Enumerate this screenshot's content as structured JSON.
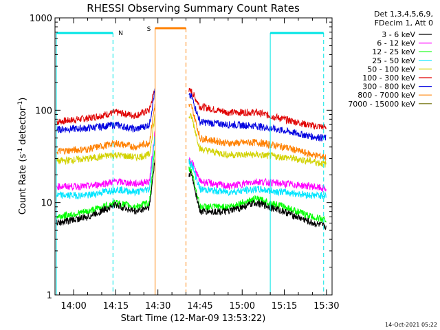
{
  "chart_data": {
    "type": "line",
    "title": "RHESSI Observing Summary Count Rates",
    "xlabel": "Start Time (12-Mar-09 13:53:22)",
    "ylabel_main": "Count Rate (s",
    "ylabel_sup1": "-1",
    "ylabel_mid": " detector",
    "ylabel_sup2": "-1",
    "ylabel_end": ")",
    "yscale": "log",
    "ylim": [
      1,
      1000
    ],
    "xlim": [
      "13:53:22",
      "15:32:00"
    ],
    "x_ticks": [
      "14:00",
      "14:15",
      "14:30",
      "14:45",
      "15:00",
      "15:15",
      "15:30"
    ],
    "y_ticks": [
      "1",
      "10",
      "100",
      "1000"
    ],
    "header": {
      "line1": "Det 1,3,4,5,6,9,",
      "line2": "FDecim 1, Att 0"
    },
    "footer_date": "14-Oct-2021 05:22",
    "annotations": {
      "night_label": "N",
      "saa_label": "S",
      "night_color": "#00e5e5",
      "saa_color": "#ff8000"
    },
    "bands": [
      {
        "label": "3 - 6 keV",
        "color": "#000000"
      },
      {
        "label": "6 - 12 keV",
        "color": "#ff00ff"
      },
      {
        "label": "12 - 25 keV",
        "color": "#00ff00"
      },
      {
        "label": "25 - 50 keV",
        "color": "#00e5ff"
      },
      {
        "label": "50 - 100 keV",
        "color": "#d2d200"
      },
      {
        "label": "100 - 300 keV",
        "color": "#e00000"
      },
      {
        "label": "300 - 800 keV",
        "color": "#0000e0"
      },
      {
        "label": "800 - 7000 keV",
        "color": "#ff8000"
      },
      {
        "label": "7000 - 15000 keV",
        "color": "#6b6b00"
      }
    ],
    "series": [
      {
        "band": "100 - 300 keV",
        "color": "#e00000",
        "times": [
          "13:54",
          "14:05",
          "14:15",
          "14:22",
          "14:27",
          "14:29",
          "14:42",
          "14:45",
          "14:55",
          "15:05",
          "15:15",
          "15:25",
          "15:30"
        ],
        "values": [
          75,
          82,
          95,
          88,
          100,
          180,
          160,
          110,
          95,
          95,
          80,
          68,
          66
        ]
      },
      {
        "band": "300 - 800 keV",
        "color": "#0000e0",
        "times": [
          "13:54",
          "14:05",
          "14:15",
          "14:22",
          "14:27",
          "14:29",
          "14:42",
          "14:45",
          "14:55",
          "15:05",
          "15:15",
          "15:25",
          "15:30"
        ],
        "values": [
          62,
          64,
          70,
          62,
          70,
          170,
          140,
          75,
          70,
          68,
          60,
          52,
          50
        ]
      },
      {
        "band": "800 - 7000 keV",
        "color": "#ff8000",
        "times": [
          "13:54",
          "14:05",
          "14:15",
          "14:22",
          "14:27",
          "14:29",
          "14:42",
          "14:45",
          "14:55",
          "15:05",
          "15:15",
          "15:25",
          "15:30"
        ],
        "values": [
          36,
          38,
          44,
          40,
          45,
          120,
          110,
          50,
          44,
          45,
          40,
          33,
          31
        ]
      },
      {
        "band": "50 - 100 keV",
        "color": "#d2d200",
        "times": [
          "13:54",
          "14:05",
          "14:15",
          "14:22",
          "14:27",
          "14:29",
          "14:42",
          "14:45",
          "14:55",
          "15:05",
          "15:15",
          "15:25",
          "15:30"
        ],
        "values": [
          28,
          30,
          33,
          31,
          33,
          90,
          85,
          38,
          33,
          33,
          31,
          28,
          26
        ]
      },
      {
        "band": "6 - 12 keV",
        "color": "#ff00ff",
        "times": [
          "13:54",
          "14:05",
          "14:15",
          "14:22",
          "14:27",
          "14:29",
          "14:42",
          "14:45",
          "14:55",
          "15:05",
          "15:15",
          "15:25",
          "15:30"
        ],
        "values": [
          15,
          15,
          17,
          16,
          17,
          60,
          28,
          17,
          15,
          17,
          16,
          15,
          14
        ]
      },
      {
        "band": "25 - 50 keV",
        "color": "#00e5ff",
        "times": [
          "13:54",
          "14:05",
          "14:15",
          "14:22",
          "14:27",
          "14:29",
          "14:42",
          "14:45",
          "14:55",
          "15:05",
          "15:15",
          "15:25",
          "15:30"
        ],
        "values": [
          12,
          12,
          14,
          13,
          14,
          55,
          26,
          14,
          13,
          14,
          13,
          12,
          12
        ]
      },
      {
        "band": "12 - 25 keV",
        "color": "#00ff00",
        "times": [
          "13:54",
          "14:05",
          "14:15",
          "14:22",
          "14:27",
          "14:29",
          "14:42",
          "14:45",
          "14:55",
          "15:05",
          "15:15",
          "15:25",
          "15:30"
        ],
        "values": [
          7,
          8,
          10,
          9,
          10,
          40,
          22,
          9,
          9,
          11,
          9,
          7,
          6.5
        ]
      },
      {
        "band": "3 - 6 keV",
        "color": "#000000",
        "times": [
          "13:54",
          "14:05",
          "14:15",
          "14:22",
          "14:27",
          "14:29",
          "14:42",
          "14:45",
          "14:55",
          "15:05",
          "15:15",
          "15:25",
          "15:30"
        ],
        "values": [
          6,
          7,
          9.5,
          8,
          9,
          30,
          20,
          8,
          8,
          10,
          8,
          6,
          5.5
        ]
      }
    ]
  }
}
